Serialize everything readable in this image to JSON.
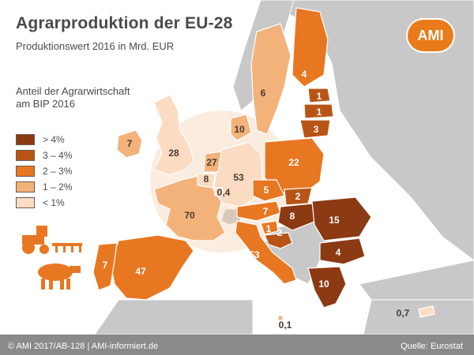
{
  "title": "Agrarproduktion der EU-28",
  "subtitle": "Produktionswert 2016 in Mrd. EUR",
  "legend": {
    "title": "Anteil der Agrarwirtschaft am BIP 2016",
    "items": [
      {
        "label": "> 4%",
        "color": "#8b3a13"
      },
      {
        "label": "3 – 4%",
        "color": "#b85516"
      },
      {
        "label": "2 – 3%",
        "color": "#e87722"
      },
      {
        "label": "1 – 2%",
        "color": "#f3b27a"
      },
      {
        "label": "< 1%",
        "color": "#fbdcc3"
      }
    ]
  },
  "countries": [
    {
      "id": "ireland",
      "value": "7"
    },
    {
      "id": "uk",
      "value": "28"
    },
    {
      "id": "france",
      "value": "70"
    },
    {
      "id": "spain",
      "value": "47"
    },
    {
      "id": "portugal",
      "value": "7"
    },
    {
      "id": "italy",
      "value": "53"
    },
    {
      "id": "germany",
      "value": "53"
    },
    {
      "id": "netherlands",
      "value": "27"
    },
    {
      "id": "belgium",
      "value": "8"
    },
    {
      "id": "luxembourg",
      "value": "0,4"
    },
    {
      "id": "denmark",
      "value": "10"
    },
    {
      "id": "sweden",
      "value": "6"
    },
    {
      "id": "finland",
      "value": "4"
    },
    {
      "id": "estonia",
      "value": "1"
    },
    {
      "id": "latvia",
      "value": "1"
    },
    {
      "id": "lithuania",
      "value": "3"
    },
    {
      "id": "poland",
      "value": "22"
    },
    {
      "id": "czechia",
      "value": "5"
    },
    {
      "id": "slovakia",
      "value": "2"
    },
    {
      "id": "austria",
      "value": "7"
    },
    {
      "id": "hungary",
      "value": "8"
    },
    {
      "id": "slovenia",
      "value": "1"
    },
    {
      "id": "croatia",
      "value": "2"
    },
    {
      "id": "romania",
      "value": "15"
    },
    {
      "id": "bulgaria",
      "value": "4"
    },
    {
      "id": "greece",
      "value": "10"
    },
    {
      "id": "malta",
      "value": "0,1"
    },
    {
      "id": "cyprus",
      "value": "0,7"
    }
  ],
  "footer": {
    "left": "© AMI 2017/AB-128 | AMI-informiert.de",
    "right": "Quelle: Eurostat"
  },
  "logo": "AMI",
  "colors": {
    "sea": "#ffffff",
    "non_eu": "#c8c8c8",
    "accent": "#ea7b1a"
  },
  "icons": [
    "tractor-icon",
    "cow-icon"
  ]
}
